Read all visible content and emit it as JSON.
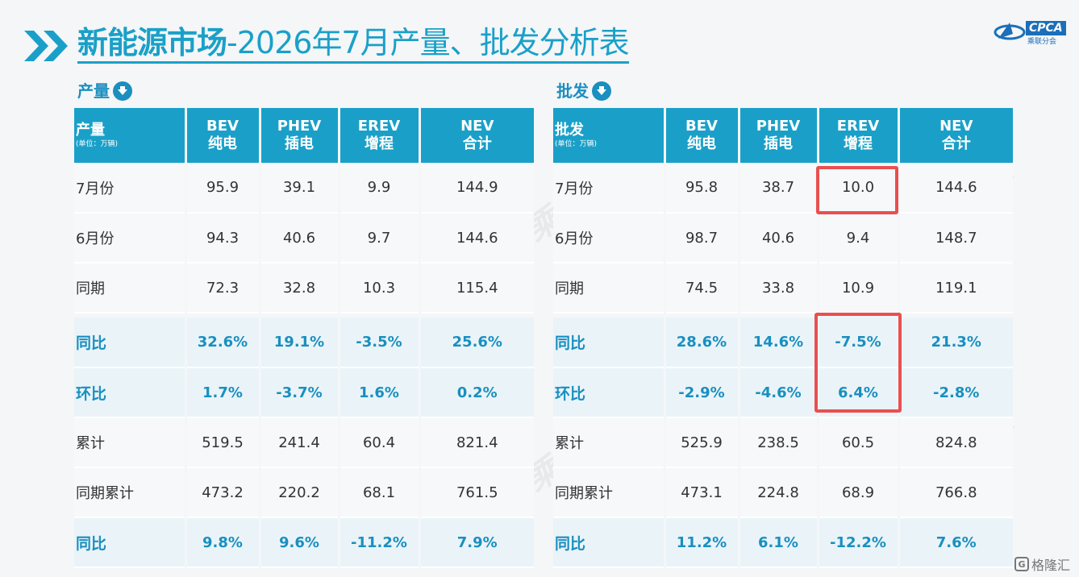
{
  "title": {
    "part1": "新能源市场",
    "part2": "-2026年7月产量、批发分析表"
  },
  "logo": {
    "text": "CPCA",
    "sub": "乘联分会"
  },
  "watermark": "CPCA 乘联分会",
  "corner": {
    "glyph": "G",
    "text": "格隆汇"
  },
  "production": {
    "label": "产量",
    "header": {
      "corner": "产量",
      "unit": "(单位：万辆)",
      "cols": [
        {
          "l1": "BEV",
          "l2": "纯电"
        },
        {
          "l1": "PHEV",
          "l2": "插电"
        },
        {
          "l1": "EREV",
          "l2": "增程"
        },
        {
          "l1": "NEV",
          "l2": "合计"
        }
      ]
    },
    "rows": [
      {
        "label": "7月份",
        "v": [
          "95.9",
          "39.1",
          "9.9",
          "144.9"
        ]
      },
      {
        "label": "6月份",
        "v": [
          "94.3",
          "40.6",
          "9.7",
          "144.6"
        ]
      },
      {
        "label": "同期",
        "v": [
          "72.3",
          "32.8",
          "10.3",
          "115.4"
        ]
      },
      {
        "label": "同比",
        "v": [
          "32.6%",
          "19.1%",
          "-3.5%",
          "25.6%"
        ]
      },
      {
        "label": "环比",
        "v": [
          "1.7%",
          "-3.7%",
          "1.6%",
          "0.2%"
        ]
      },
      {
        "label": "累计",
        "v": [
          "519.5",
          "241.4",
          "60.4",
          "821.4"
        ]
      },
      {
        "label": "同期累计",
        "v": [
          "473.2",
          "220.2",
          "68.1",
          "761.5"
        ]
      },
      {
        "label": "同比",
        "v": [
          "9.8%",
          "9.6%",
          "-11.2%",
          "7.9%"
        ]
      }
    ]
  },
  "wholesale": {
    "label": "批发",
    "header": {
      "corner": "批发",
      "unit": "(单位：万辆)",
      "cols": [
        {
          "l1": "BEV",
          "l2": "纯电"
        },
        {
          "l1": "PHEV",
          "l2": "插电"
        },
        {
          "l1": "EREV",
          "l2": "增程"
        },
        {
          "l1": "NEV",
          "l2": "合计"
        }
      ]
    },
    "rows": [
      {
        "label": "7月份",
        "v": [
          "95.8",
          "38.7",
          "10.0",
          "144.6"
        ]
      },
      {
        "label": "6月份",
        "v": [
          "98.7",
          "40.6",
          "9.4",
          "148.7"
        ]
      },
      {
        "label": "同期",
        "v": [
          "74.5",
          "33.8",
          "10.9",
          "119.1"
        ]
      },
      {
        "label": "同比",
        "v": [
          "28.6%",
          "14.6%",
          "-7.5%",
          "21.3%"
        ]
      },
      {
        "label": "环比",
        "v": [
          "-2.9%",
          "-4.6%",
          "6.4%",
          "-2.8%"
        ]
      },
      {
        "label": "累计",
        "v": [
          "525.9",
          "238.5",
          "60.5",
          "824.8"
        ]
      },
      {
        "label": "同期累计",
        "v": [
          "473.1",
          "224.8",
          "68.9",
          "766.8"
        ]
      },
      {
        "label": "同比",
        "v": [
          "11.2%",
          "6.1%",
          "-12.2%",
          "7.6%"
        ]
      }
    ]
  },
  "colors": {
    "accent": "#1aa0c8",
    "highlight_text": "#1a8fc0",
    "redbox": "#e85050"
  }
}
